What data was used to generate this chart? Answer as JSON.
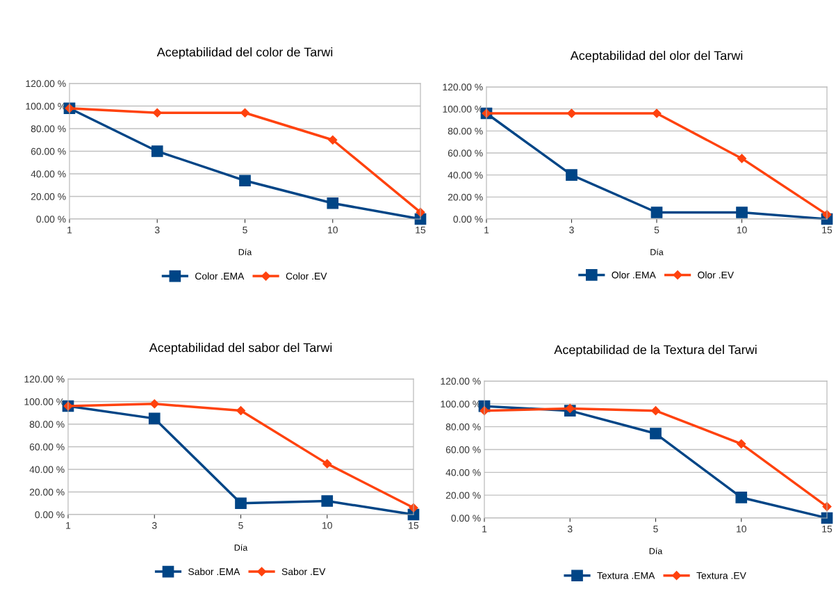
{
  "chart_data": [
    {
      "type": "line",
      "title": "Aceptabilidad del color de Tarwi",
      "xlabel": "Día",
      "categories": [
        "1",
        "3",
        "5",
        "10",
        "15"
      ],
      "ylim": [
        0,
        120
      ],
      "yticks": [
        {
          "value": 0,
          "label": "0.00 %"
        },
        {
          "value": 20,
          "label": "20.00 %"
        },
        {
          "value": 40,
          "label": "40.00 %"
        },
        {
          "value": 60,
          "label": "60.00 %"
        },
        {
          "value": 80,
          "label": "80.00 %"
        },
        {
          "value": 100,
          "label": "100.00 %"
        },
        {
          "value": 120,
          "label": "120.00 %"
        }
      ],
      "grid": "y",
      "legend": "bottom",
      "series": [
        {
          "name": "Color .EMA",
          "color": "#004586",
          "marker": "square",
          "values": [
            98,
            60,
            34,
            14,
            0
          ]
        },
        {
          "name": "Color .EV",
          "color": "#ff420e",
          "marker": "diamond",
          "values": [
            98,
            94,
            94,
            70,
            6
          ]
        }
      ]
    },
    {
      "type": "line",
      "title": "Aceptabilidad del olor del Tarwi",
      "xlabel": "Día",
      "categories": [
        "1",
        "3",
        "5",
        "10",
        "15"
      ],
      "ylim": [
        0,
        120
      ],
      "yticks": [
        {
          "value": 0,
          "label": "0.00 %"
        },
        {
          "value": 20,
          "label": "20.00 %"
        },
        {
          "value": 40,
          "label": "40.00 %"
        },
        {
          "value": 60,
          "label": "60.00 %"
        },
        {
          "value": 80,
          "label": "80.00 %"
        },
        {
          "value": 100,
          "label": "100.00 %"
        },
        {
          "value": 120,
          "label": "120.00 %"
        }
      ],
      "grid": "y",
      "legend": "bottom",
      "series": [
        {
          "name": "Olor .EMA",
          "color": "#004586",
          "marker": "square",
          "values": [
            96,
            40,
            6,
            6,
            0
          ]
        },
        {
          "name": "Olor .EV",
          "color": "#ff420e",
          "marker": "diamond",
          "values": [
            96,
            96,
            96,
            55,
            4
          ]
        }
      ]
    },
    {
      "type": "line",
      "title": "Aceptabilidad del sabor del Tarwi",
      "xlabel": "Día",
      "categories": [
        "1",
        "3",
        "5",
        "10",
        "15"
      ],
      "ylim": [
        0,
        120
      ],
      "yticks": [
        {
          "value": 0,
          "label": "0.00 %"
        },
        {
          "value": 20,
          "label": "20.00 %"
        },
        {
          "value": 40,
          "label": "40.00 %"
        },
        {
          "value": 60,
          "label": "60.00 %"
        },
        {
          "value": 80,
          "label": "80.00 %"
        },
        {
          "value": 100,
          "label": "100.00 %"
        },
        {
          "value": 120,
          "label": "120.00 %"
        }
      ],
      "grid": "y",
      "legend": "bottom",
      "series": [
        {
          "name": "Sabor .EMA",
          "color": "#004586",
          "marker": "square",
          "values": [
            96,
            85,
            10,
            12,
            0
          ]
        },
        {
          "name": "Sabor .EV",
          "color": "#ff420e",
          "marker": "diamond",
          "values": [
            96,
            98,
            92,
            45,
            6
          ]
        }
      ]
    },
    {
      "type": "line",
      "title": "Aceptabilidad de la Textura del Tarwi",
      "xlabel": "Día",
      "categories": [
        "1",
        "3",
        "5",
        "10",
        "15"
      ],
      "ylim": [
        0,
        120
      ],
      "yticks": [
        {
          "value": 0,
          "label": "0.00 %"
        },
        {
          "value": 20,
          "label": "20.00 %"
        },
        {
          "value": 40,
          "label": "40.00 %"
        },
        {
          "value": 60,
          "label": "60.00 %"
        },
        {
          "value": 80,
          "label": "80.00 %"
        },
        {
          "value": 100,
          "label": "100.00 %"
        },
        {
          "value": 120,
          "label": "120.00 %"
        }
      ],
      "grid": "y",
      "legend": "bottom",
      "series": [
        {
          "name": "Textura .EMA",
          "color": "#004586",
          "marker": "square",
          "values": [
            98,
            94,
            74,
            18,
            0
          ]
        },
        {
          "name": "Textura .EV",
          "color": "#ff420e",
          "marker": "diamond",
          "values": [
            94,
            96,
            94,
            65,
            10
          ]
        }
      ]
    }
  ]
}
